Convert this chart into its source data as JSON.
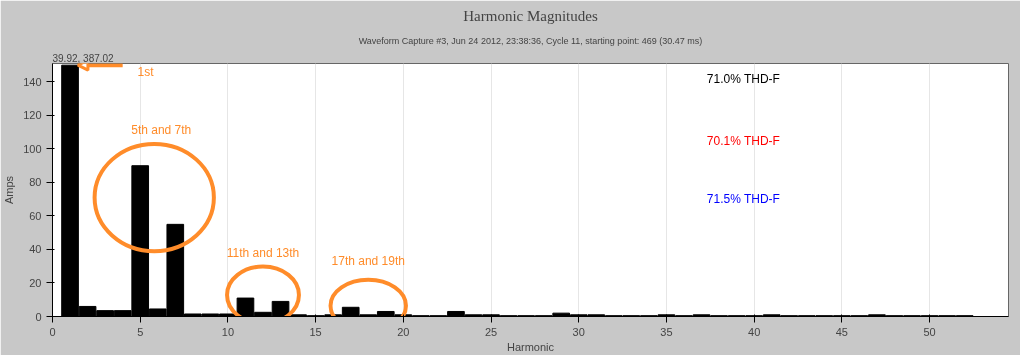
{
  "chart_data": {
    "type": "bar",
    "title": "Harmonic Magnitudes",
    "subtitle": "Waveform Capture #3, Jun 24 2012, 23:38:36, Cycle 11, starting point: 469 (30.47 ms)",
    "xlabel": "Harmonic",
    "ylabel": "Amps",
    "x": [
      1,
      2,
      3,
      4,
      5,
      6,
      7,
      8,
      9,
      10,
      11,
      12,
      13,
      14,
      15,
      16,
      17,
      18,
      19,
      20,
      21,
      22,
      23,
      24,
      25,
      26,
      27,
      28,
      29,
      30,
      31,
      32,
      33,
      34,
      35,
      36,
      37,
      38,
      39,
      40,
      41,
      42,
      43,
      44,
      45,
      46,
      47,
      48,
      49,
      50,
      51,
      52
    ],
    "values": [
      150,
      6,
      3.5,
      3.5,
      90,
      4.5,
      55,
      1.5,
      1.5,
      1.5,
      11,
      2.5,
      9,
      1,
      0.5,
      1,
      5.5,
      1,
      3,
      1,
      0.5,
      0.5,
      3,
      1,
      1,
      0.5,
      0.5,
      0.5,
      2,
      1,
      1,
      0.5,
      0.5,
      0.5,
      1,
      0.5,
      1,
      0.5,
      0.5,
      0.5,
      1,
      0.5,
      0.5,
      0.5,
      0.5,
      0.5,
      1,
      0.5,
      0.5,
      0.5,
      0.5,
      0.5
    ],
    "color": "#000000",
    "xlim": [
      0,
      54.5
    ],
    "xticks": [
      0,
      5,
      10,
      15,
      20,
      25,
      30,
      35,
      40,
      45,
      50
    ],
    "ylim": [
      0,
      151
    ],
    "yticks": [
      0,
      20,
      40,
      60,
      80,
      100,
      120,
      140
    ],
    "grid": "x",
    "annotations": [
      {
        "text": "1st",
        "x": 1,
        "y": 150
      },
      "5th and 7th",
      "11th and 13th",
      "17th and 19th",
      "71.0% THD-F",
      "70.1% THD-F",
      "71.5% THD-F",
      "39.92, 387.02"
    ]
  }
}
